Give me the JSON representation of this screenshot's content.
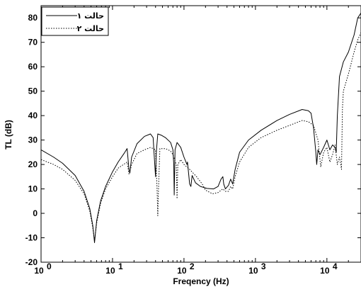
{
  "chart_data": {
    "type": "line",
    "xlabel": "Freqency (Hz)",
    "ylabel": "TL (dB)",
    "x_scale": "log",
    "xlim": [
      1,
      30000
    ],
    "ylim": [
      -20,
      85
    ],
    "grid": false,
    "legend_position": "top-left",
    "x_ticks": [
      {
        "value": 1,
        "base": "10",
        "exp": "0"
      },
      {
        "value": 10,
        "base": "10",
        "exp": "1"
      },
      {
        "value": 100,
        "base": "10",
        "exp": "2"
      },
      {
        "value": 1000,
        "base": "10",
        "exp": "3"
      },
      {
        "value": 10000,
        "base": "10",
        "exp": "4"
      }
    ],
    "y_ticks": [
      -20,
      -10,
      0,
      10,
      20,
      30,
      40,
      50,
      60,
      70,
      80
    ],
    "series": [
      {
        "name": "حالت ۱",
        "style": "solid",
        "color": "#000000",
        "points": [
          [
            1,
            26
          ],
          [
            1.5,
            23
          ],
          [
            2,
            20.5
          ],
          [
            3,
            15.5
          ],
          [
            4,
            9
          ],
          [
            4.8,
            2
          ],
          [
            5.3,
            -5
          ],
          [
            5.6,
            -12
          ],
          [
            6,
            -3
          ],
          [
            6.8,
            5
          ],
          [
            8,
            11
          ],
          [
            10,
            17
          ],
          [
            12,
            21
          ],
          [
            14.5,
            24.5
          ],
          [
            16,
            26.5
          ],
          [
            17,
            18
          ],
          [
            17.5,
            16.5
          ],
          [
            18.5,
            23
          ],
          [
            22,
            28.5
          ],
          [
            28,
            31.5
          ],
          [
            34,
            32.5
          ],
          [
            37,
            31
          ],
          [
            39,
            20
          ],
          [
            40,
            15
          ],
          [
            41,
            25
          ],
          [
            43,
            32.5
          ],
          [
            48,
            32
          ],
          [
            55,
            31
          ],
          [
            65,
            29
          ],
          [
            70,
            26
          ],
          [
            72,
            20
          ],
          [
            73,
            7.5
          ],
          [
            75,
            26
          ],
          [
            80,
            29
          ],
          [
            90,
            27
          ],
          [
            100,
            23
          ],
          [
            110,
            20
          ],
          [
            112,
            21
          ],
          [
            120,
            12
          ],
          [
            125,
            11
          ],
          [
            130,
            15.5
          ],
          [
            145,
            12.5
          ],
          [
            170,
            11
          ],
          [
            210,
            10.2
          ],
          [
            260,
            10
          ],
          [
            300,
            11
          ],
          [
            330,
            14
          ],
          [
            350,
            15
          ],
          [
            360,
            12
          ],
          [
            380,
            10
          ],
          [
            420,
            11.5
          ],
          [
            450,
            14
          ],
          [
            480,
            12
          ],
          [
            520,
            18
          ],
          [
            600,
            25
          ],
          [
            800,
            30
          ],
          [
            1200,
            34
          ],
          [
            2000,
            38
          ],
          [
            3000,
            40.5
          ],
          [
            4500,
            42.5
          ],
          [
            5500,
            42
          ],
          [
            6000,
            41
          ],
          [
            6500,
            35
          ],
          [
            7000,
            25
          ],
          [
            7200,
            20
          ],
          [
            7500,
            26
          ],
          [
            8000,
            24
          ],
          [
            9000,
            27
          ],
          [
            10000,
            30
          ],
          [
            11000,
            26
          ],
          [
            12000,
            28
          ],
          [
            13000,
            27
          ],
          [
            13500,
            25
          ],
          [
            14000,
            40
          ],
          [
            15000,
            56
          ],
          [
            17000,
            62
          ],
          [
            20000,
            66
          ],
          [
            24000,
            73
          ],
          [
            27000,
            80
          ],
          [
            30000,
            82
          ]
        ]
      },
      {
        "name": "حالت ۲",
        "style": "dotted",
        "color": "#000000",
        "points": [
          [
            1,
            22
          ],
          [
            1.5,
            20
          ],
          [
            2,
            18
          ],
          [
            3,
            13.5
          ],
          [
            4,
            8
          ],
          [
            4.8,
            1
          ],
          [
            5.3,
            -6
          ],
          [
            5.6,
            -11
          ],
          [
            6,
            -4
          ],
          [
            6.8,
            4
          ],
          [
            8,
            10
          ],
          [
            10,
            15
          ],
          [
            12,
            18.5
          ],
          [
            16,
            21
          ],
          [
            17,
            16
          ],
          [
            17.5,
            17
          ],
          [
            18.5,
            20
          ],
          [
            22,
            24.5
          ],
          [
            28,
            26
          ],
          [
            34,
            27
          ],
          [
            40,
            26
          ],
          [
            42,
            10
          ],
          [
            43,
            -1
          ],
          [
            44,
            10
          ],
          [
            46,
            26.5
          ],
          [
            55,
            26.5
          ],
          [
            65,
            25.5
          ],
          [
            70,
            24
          ],
          [
            78,
            20
          ],
          [
            80,
            6
          ],
          [
            82,
            20
          ],
          [
            90,
            22
          ],
          [
            100,
            20
          ],
          [
            120,
            18
          ],
          [
            150,
            15
          ],
          [
            180,
            12
          ],
          [
            200,
            9.5
          ],
          [
            250,
            8
          ],
          [
            300,
            8.5
          ],
          [
            350,
            10
          ],
          [
            380,
            9
          ],
          [
            420,
            9
          ],
          [
            450,
            11
          ],
          [
            480,
            10
          ],
          [
            520,
            15
          ],
          [
            600,
            21
          ],
          [
            800,
            27
          ],
          [
            1200,
            31
          ],
          [
            2000,
            34
          ],
          [
            3000,
            36
          ],
          [
            4500,
            38
          ],
          [
            5500,
            37.5
          ],
          [
            6500,
            36
          ],
          [
            7500,
            30
          ],
          [
            8000,
            22
          ],
          [
            8200,
            19
          ],
          [
            9000,
            25
          ],
          [
            10000,
            27
          ],
          [
            11000,
            21
          ],
          [
            12000,
            24
          ],
          [
            13000,
            28
          ],
          [
            14000,
            20
          ],
          [
            15000,
            23
          ],
          [
            16000,
            18
          ],
          [
            16500,
            43
          ],
          [
            17000,
            50
          ],
          [
            20000,
            57
          ],
          [
            24000,
            66
          ],
          [
            27000,
            71
          ],
          [
            30000,
            74
          ]
        ]
      }
    ]
  }
}
